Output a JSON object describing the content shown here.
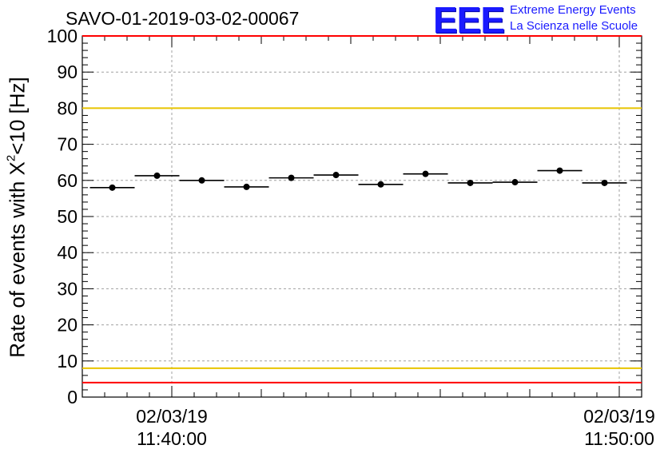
{
  "title": "SAVO-01-2019-03-02-00067",
  "logo": {
    "mark": "EEE",
    "line1": "Extreme Energy Events",
    "line2": "La Scienza nelle Scuole",
    "color": "#1a1aff"
  },
  "chart_data": {
    "type": "scatter",
    "title": "SAVO-01-2019-03-02-00067",
    "ylabel_prefix": "Rate of events with X",
    "ylabel_sup": "2",
    "ylabel_suffix": "<10 [Hz]",
    "xlabel": "",
    "ylim": [
      0,
      100
    ],
    "yticks": [
      0,
      10,
      20,
      30,
      40,
      50,
      60,
      70,
      80,
      90,
      100
    ],
    "xlim_minutes": [
      -2.0,
      10.5
    ],
    "xtick_labels": [
      {
        "minute": 0,
        "date": "02/03/19",
        "time": "11:40:00"
      },
      {
        "minute": 10,
        "date": "02/03/19",
        "time": "11:50:00"
      }
    ],
    "grid": true,
    "points": [
      {
        "x": -1.33,
        "y": 58.0
      },
      {
        "x": -0.33,
        "y": 61.3
      },
      {
        "x": 0.67,
        "y": 60.0
      },
      {
        "x": 1.67,
        "y": 58.2
      },
      {
        "x": 2.67,
        "y": 60.7
      },
      {
        "x": 3.67,
        "y": 61.5
      },
      {
        "x": 4.67,
        "y": 58.9
      },
      {
        "x": 5.67,
        "y": 61.8
      },
      {
        "x": 6.67,
        "y": 59.3
      },
      {
        "x": 7.67,
        "y": 59.5
      },
      {
        "x": 8.67,
        "y": 62.7
      },
      {
        "x": 9.67,
        "y": 59.3
      }
    ],
    "x_half_width_minutes": 0.5,
    "reference_lines": [
      {
        "y": 100,
        "color": "#ff0000"
      },
      {
        "y": 80,
        "color": "#e8c400"
      },
      {
        "y": 8,
        "color": "#e8c400"
      },
      {
        "y": 4,
        "color": "#ff0000"
      }
    ]
  }
}
